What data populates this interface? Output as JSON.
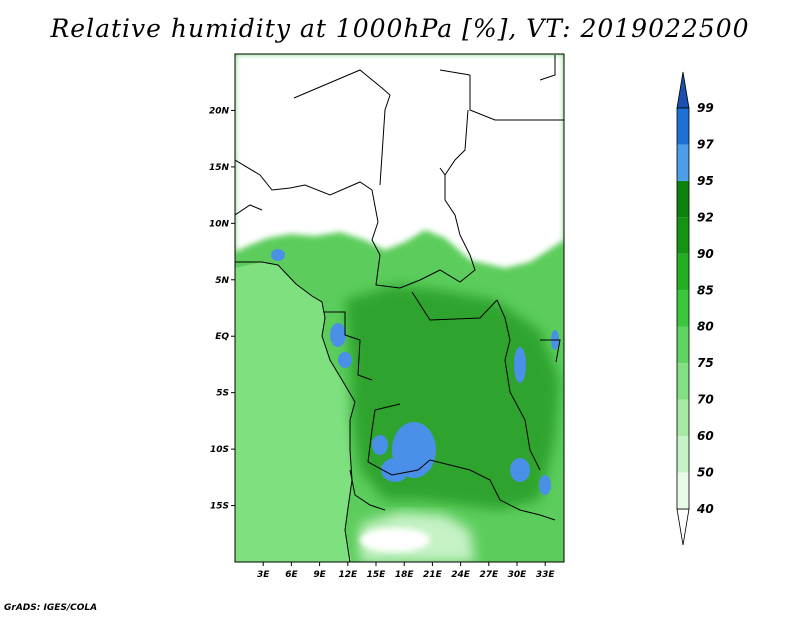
{
  "title": "Relative humidity at 1000hPa [%], VT: 2019022500",
  "credit": "GrADS: IGES/COLA",
  "map": {
    "lon_range": [
      0,
      35
    ],
    "lat_range": [
      -20,
      25
    ],
    "lat_ticks": [
      {
        "value": 20,
        "label": "20N"
      },
      {
        "value": 15,
        "label": "15N"
      },
      {
        "value": 10,
        "label": "10N"
      },
      {
        "value": 5,
        "label": "5N"
      },
      {
        "value": 0,
        "label": "EQ"
      },
      {
        "value": -5,
        "label": "5S"
      },
      {
        "value": -10,
        "label": "10S"
      },
      {
        "value": -15,
        "label": "15S"
      }
    ],
    "lon_ticks": [
      {
        "value": 3,
        "label": "3E"
      },
      {
        "value": 6,
        "label": "6E"
      },
      {
        "value": 9,
        "label": "9E"
      },
      {
        "value": 12,
        "label": "12E"
      },
      {
        "value": 15,
        "label": "15E"
      },
      {
        "value": 18,
        "label": "18E"
      },
      {
        "value": 21,
        "label": "21E"
      },
      {
        "value": 24,
        "label": "24E"
      },
      {
        "value": 27,
        "label": "27E"
      },
      {
        "value": 30,
        "label": "30E"
      },
      {
        "value": 33,
        "label": "33E"
      }
    ],
    "colors": {
      "ocean": "#7fe07f",
      "land_base": "#5ccd5c",
      "dry": "#ffffff",
      "moist_dark": "#2fa42f",
      "very_wet": "#4a90e8",
      "border": "#000000"
    }
  },
  "colorbar": {
    "levels": [
      40,
      50,
      60,
      70,
      75,
      80,
      85,
      90,
      92,
      95,
      97,
      99
    ],
    "colors": [
      "#ffffff",
      "#e8fae8",
      "#c6f2c6",
      "#a4eaa4",
      "#82e082",
      "#60d460",
      "#3cc63c",
      "#22b022",
      "#139413",
      "#0d830d",
      "#4d9de8",
      "#1e70d6",
      "#1b4fb0"
    ]
  }
}
